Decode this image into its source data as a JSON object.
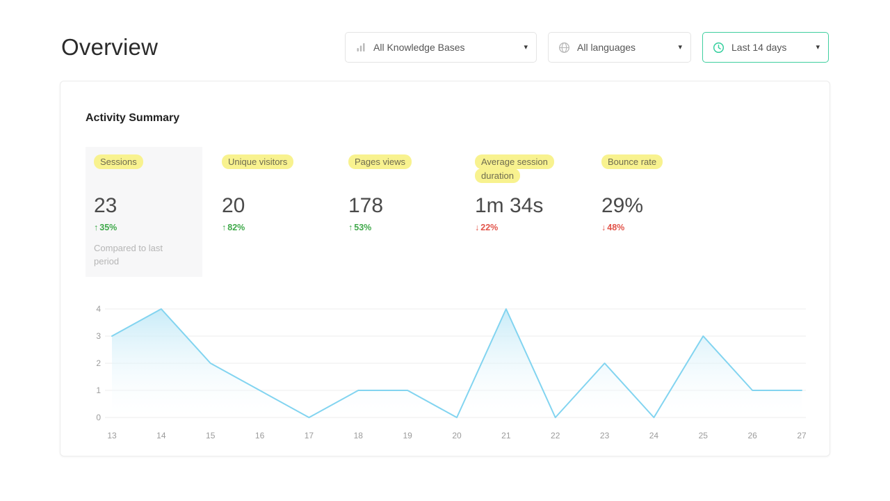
{
  "page": {
    "title": "Overview"
  },
  "filters": [
    {
      "label": "All Knowledge Bases",
      "icon": "knowledge-base-icon"
    },
    {
      "label": "All languages",
      "icon": "globe-icon"
    },
    {
      "label": "Last 14 days",
      "icon": "clock-icon"
    }
  ],
  "card": {
    "title": "Activity Summary",
    "metrics": [
      {
        "label": "Sessions",
        "value": "23",
        "delta": "35%",
        "direction": "up",
        "note": "Compared to last period",
        "emphasized": true
      },
      {
        "label": "Unique visitors",
        "value": "20",
        "delta": "82%",
        "direction": "up"
      },
      {
        "label": "Pages views",
        "value": "178",
        "delta": "53%",
        "direction": "up"
      },
      {
        "label": "Average session duration",
        "value": "1m 34s",
        "delta": "22%",
        "direction": "down"
      },
      {
        "label": "Bounce rate",
        "value": "29%",
        "delta": "48%",
        "direction": "down"
      }
    ]
  },
  "chart_data": {
    "type": "area",
    "title": "",
    "xlabel": "",
    "ylabel": "",
    "x": [
      13,
      14,
      15,
      16,
      17,
      18,
      19,
      20,
      21,
      22,
      23,
      24,
      25,
      26,
      27
    ],
    "values": [
      3,
      4,
      2,
      1,
      0,
      1,
      1,
      0,
      4,
      0,
      2,
      0,
      3,
      1,
      1
    ],
    "ylim": [
      0,
      4
    ],
    "yticks": [
      0,
      1,
      2,
      3,
      4
    ],
    "grid": true,
    "legend": false,
    "line_color": "#82d4f0",
    "fill_top": "#c2e9f7"
  },
  "colors": {
    "delta_up": "#3fa94a",
    "delta_down": "#e2544a",
    "label_highlight": "#f8f28f",
    "date_filter_border": "#3fcf9f",
    "chart_line": "#82d4f0"
  }
}
